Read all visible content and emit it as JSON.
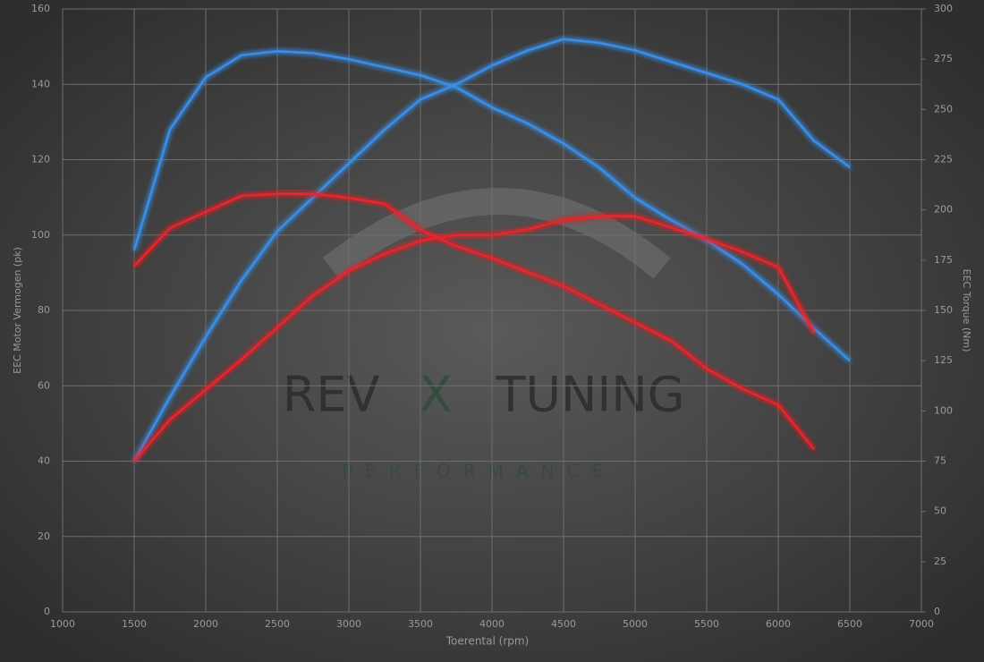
{
  "chart_data": {
    "type": "line",
    "x_label": "Toerental (rpm)",
    "y_label": "EEC Motor Vermogen (pk)",
    "y2_label": "EEC Torque (Nm)",
    "watermark": [
      "REV",
      "X",
      "TUNING",
      "PERFORMANCE"
    ],
    "x": [
      1500,
      1750,
      2000,
      2250,
      2500,
      2750,
      3000,
      3250,
      3500,
      3750,
      4000,
      4250,
      4500,
      4750,
      5000,
      5250,
      5500,
      5750,
      6000,
      6250,
      6500
    ],
    "series": [
      {
        "color": "#3a8ee8",
        "axis": "y",
        "values": [
          40,
          57,
          73,
          88,
          101,
          110,
          119,
          128,
          136,
          140,
          145,
          149,
          152,
          151,
          149,
          146,
          143,
          140,
          136,
          125,
          118
        ]
      },
      {
        "color": "#3a8ee8",
        "axis": "y2",
        "values": [
          180,
          240,
          266,
          277,
          279,
          278,
          275,
          271,
          267,
          261,
          251,
          243,
          233,
          221,
          206,
          195,
          185,
          173,
          158,
          141,
          125
        ]
      },
      {
        "color": "#e8262a",
        "axis": "y",
        "values": [
          40,
          51,
          59,
          67,
          75.5,
          84,
          90.5,
          95,
          98.5,
          100,
          100,
          101.5,
          104,
          105,
          105,
          102,
          99,
          95.5,
          91.5,
          74,
          null
        ]
      },
      {
        "color": "#e8262a",
        "axis": "y2",
        "values": [
          172,
          191,
          199,
          207,
          208,
          208,
          206,
          203,
          190,
          182,
          176,
          169,
          162,
          153,
          144,
          135,
          121,
          111,
          103,
          81,
          null
        ]
      }
    ],
    "xlim": [
      1000,
      7000
    ],
    "xticks": [
      1000,
      1500,
      2000,
      2500,
      3000,
      3500,
      4000,
      4500,
      5000,
      5500,
      6000,
      6500,
      7000
    ],
    "ylim": [
      0,
      160
    ],
    "yticks": [
      0,
      20,
      40,
      60,
      80,
      100,
      120,
      140,
      160
    ],
    "y2lim": [
      0,
      300
    ],
    "y2ticks": [
      0,
      25,
      50,
      75,
      100,
      125,
      150,
      175,
      200,
      225,
      250,
      275,
      300
    ],
    "grid": true
  }
}
